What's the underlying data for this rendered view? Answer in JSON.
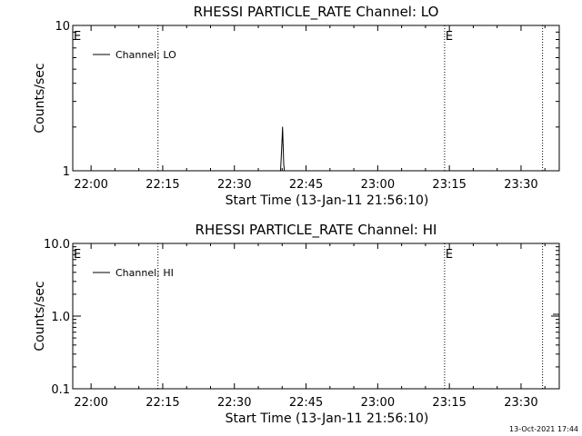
{
  "footer": {
    "timestamp": "13-Oct-2021 17:44"
  },
  "chart_data": [
    {
      "type": "line",
      "title": "RHESSI PARTICLE_RATE Channel: LO",
      "xlabel": "Start Time (13-Jan-11 21:56:10)",
      "ylabel": "Counts/sec",
      "yscale": "log",
      "ylim": [
        1,
        10
      ],
      "xlim": [
        "21:56:10",
        "23:38:00"
      ],
      "x_ticks": [
        "22:00",
        "22:15",
        "22:30",
        "22:45",
        "23:00",
        "23:15",
        "23:30"
      ],
      "y_ticks": [
        "1",
        "10"
      ],
      "legend": {
        "position": "top-left",
        "entries": [
          "Channel: LO"
        ]
      },
      "markers": [
        {
          "time": "22:14:00",
          "label": ""
        },
        {
          "time": "23:14:00",
          "label": "E"
        },
        {
          "time": "23:34:30",
          "label": ""
        }
      ],
      "start_marker_label": "E",
      "series": [
        {
          "name": "Channel: LO",
          "color": "#000000",
          "points": [
            [
              "22:39:40",
              1
            ],
            [
              "22:39:50",
              1.3
            ],
            [
              "22:39:58",
              1.6
            ],
            [
              "22:40:05",
              2.0
            ],
            [
              "22:40:12",
              1.5
            ],
            [
              "22:40:20",
              1.1
            ],
            [
              "22:40:28",
              1
            ]
          ]
        }
      ]
    },
    {
      "type": "line",
      "title": "RHESSI PARTICLE_RATE Channel: HI",
      "xlabel": "Start Time (13-Jan-11 21:56:10)",
      "ylabel": "Counts/sec",
      "yscale": "log",
      "ylim": [
        0.1,
        10
      ],
      "xlim": [
        "21:56:10",
        "23:38:00"
      ],
      "x_ticks": [
        "22:00",
        "22:15",
        "22:30",
        "22:45",
        "23:00",
        "23:15",
        "23:30"
      ],
      "y_ticks": [
        "0.1",
        "1.0",
        "10.0"
      ],
      "legend": {
        "position": "top-left",
        "entries": [
          "Channel: HI"
        ]
      },
      "markers": [
        {
          "time": "22:14:00",
          "label": ""
        },
        {
          "time": "23:14:00",
          "label": "E"
        },
        {
          "time": "23:34:30",
          "label": ""
        }
      ],
      "start_marker_label": "E",
      "series": [
        {
          "name": "Channel: HI",
          "color": "#000000",
          "points": []
        }
      ]
    }
  ]
}
